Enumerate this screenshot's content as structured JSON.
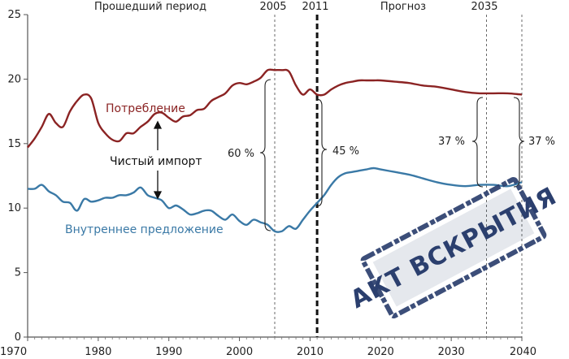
{
  "chart_data": {
    "type": "line",
    "title": "",
    "xlabel": "",
    "ylabel": "",
    "xlim": [
      1970,
      2040
    ],
    "ylim": [
      0,
      25
    ],
    "grid": false,
    "x_ticks": [
      "1970",
      "1980",
      "1990",
      "2000",
      "2010",
      "2020",
      "2030",
      "2040"
    ],
    "y_ticks": [
      "0",
      "5",
      "10",
      "15",
      "20",
      "25"
    ],
    "top_labels": {
      "past": "Прошедший период",
      "y2005": "2005",
      "y2011": "2011",
      "forecast": "Прогноз",
      "y2035": "2035"
    },
    "series": [
      {
        "name": "Потребление",
        "color": "#8b2323",
        "x": [
          1970,
          1971,
          1972,
          1973,
          1974,
          1975,
          1976,
          1977,
          1978,
          1979,
          1980,
          1981,
          1982,
          1983,
          1984,
          1985,
          1986,
          1987,
          1988,
          1989,
          1990,
          1991,
          1992,
          1993,
          1994,
          1995,
          1996,
          1997,
          1998,
          1999,
          2000,
          2001,
          2002,
          2003,
          2004,
          2005,
          2006,
          2007,
          2008,
          2009,
          2010,
          2011,
          2012,
          2013,
          2014,
          2015,
          2016,
          2017,
          2018,
          2019,
          2020,
          2022,
          2024,
          2026,
          2028,
          2030,
          2032,
          2034,
          2036,
          2038,
          2040
        ],
        "values": [
          14.7,
          15.4,
          16.3,
          17.3,
          16.6,
          16.3,
          17.5,
          18.3,
          18.8,
          18.5,
          16.6,
          15.8,
          15.3,
          15.2,
          15.8,
          15.8,
          16.3,
          16.7,
          17.3,
          17.4,
          17.0,
          16.7,
          17.1,
          17.2,
          17.6,
          17.7,
          18.3,
          18.6,
          18.9,
          19.5,
          19.7,
          19.6,
          19.8,
          20.1,
          20.7,
          20.7,
          20.7,
          20.6,
          19.5,
          18.8,
          19.2,
          18.8,
          18.8,
          19.2,
          19.5,
          19.7,
          19.8,
          19.9,
          19.9,
          19.9,
          19.9,
          19.8,
          19.7,
          19.5,
          19.4,
          19.2,
          19.0,
          18.9,
          18.9,
          18.9,
          18.8
        ]
      },
      {
        "name": "Внутреннее предложение",
        "color": "#3a79a6",
        "x": [
          1970,
          1971,
          1972,
          1973,
          1974,
          1975,
          1976,
          1977,
          1978,
          1979,
          1980,
          1981,
          1982,
          1983,
          1984,
          1985,
          1986,
          1987,
          1988,
          1989,
          1990,
          1991,
          1992,
          1993,
          1994,
          1995,
          1996,
          1997,
          1998,
          1999,
          2000,
          2001,
          2002,
          2003,
          2004,
          2005,
          2006,
          2007,
          2008,
          2009,
          2010,
          2011,
          2012,
          2013,
          2014,
          2015,
          2016,
          2017,
          2018,
          2019,
          2020,
          2022,
          2024,
          2026,
          2028,
          2030,
          2032,
          2034,
          2036,
          2038,
          2040
        ],
        "values": [
          11.5,
          11.5,
          11.8,
          11.3,
          11.0,
          10.5,
          10.4,
          9.8,
          10.7,
          10.5,
          10.6,
          10.8,
          10.8,
          11.0,
          11.0,
          11.2,
          11.6,
          11.0,
          10.8,
          10.6,
          10.0,
          10.2,
          9.9,
          9.5,
          9.6,
          9.8,
          9.8,
          9.4,
          9.1,
          9.5,
          9.0,
          8.7,
          9.1,
          8.9,
          8.7,
          8.2,
          8.2,
          8.6,
          8.4,
          9.1,
          9.8,
          10.4,
          11.0,
          11.8,
          12.4,
          12.7,
          12.8,
          12.9,
          13.0,
          13.1,
          13.0,
          12.8,
          12.6,
          12.3,
          12.0,
          11.8,
          11.7,
          11.8,
          11.8,
          11.7,
          12.0
        ]
      }
    ],
    "annotations": {
      "consumption": "Потребление",
      "supply": "Внутреннее предложение",
      "net_import": "Чистый импорт",
      "pct_2005": "60 %",
      "pct_2011": "45 %",
      "pct_2035_left": "37 %",
      "pct_2035_right": "37 %"
    },
    "stamp": "АКТ ВСКРЫТИЯ"
  }
}
